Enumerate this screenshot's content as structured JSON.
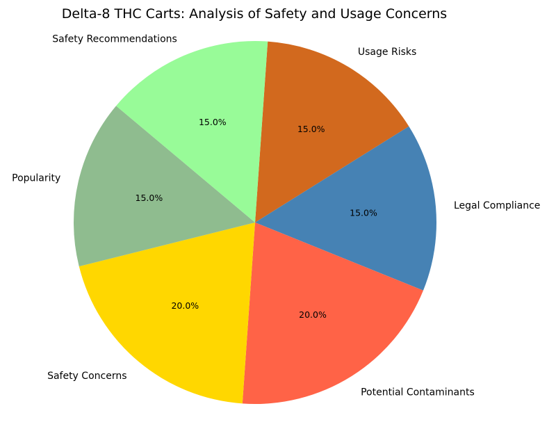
{
  "chart_data": {
    "type": "pie",
    "title": "Delta-8 THC Carts: Analysis of Safety and Usage Concerns",
    "start_angle_deg": 86,
    "direction": "clockwise",
    "slices": [
      {
        "label": "Usage Risks",
        "value": 15.0,
        "pct_label": "15.0%",
        "color": "#d2691e"
      },
      {
        "label": "Legal Compliance",
        "value": 15.0,
        "pct_label": "15.0%",
        "color": "#4682b4"
      },
      {
        "label": "Potential Contaminants",
        "value": 20.0,
        "pct_label": "20.0%",
        "color": "#ff6347"
      },
      {
        "label": "Safety Concerns",
        "value": 20.0,
        "pct_label": "20.0%",
        "color": "#ffd700"
      },
      {
        "label": "Popularity",
        "value": 15.0,
        "pct_label": "15.0%",
        "color": "#8fbc8f"
      },
      {
        "label": "Safety Recommendations",
        "value": 15.0,
        "pct_label": "15.0%",
        "color": "#98fb98"
      }
    ]
  }
}
